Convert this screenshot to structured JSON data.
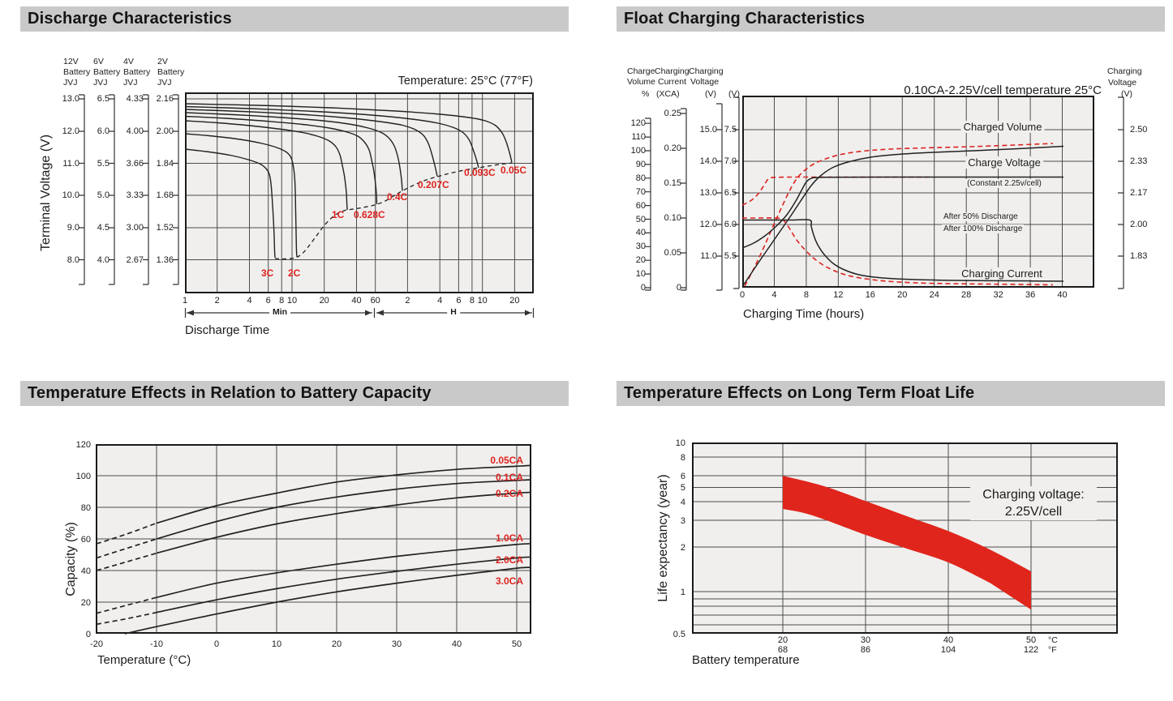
{
  "discharge": {
    "header": "Discharge Characteristics",
    "temp_note": "Temperature: 25°C (77°F)",
    "y_label": "Terminal Voltage (V)",
    "x_label": "Discharge Time",
    "range_min_label": "Min",
    "range_h_label": "H",
    "scales": [
      {
        "title": [
          "12V",
          "Battery",
          "JVJ"
        ],
        "ticks": [
          "13.0",
          "12.0",
          "11.0",
          "10.0",
          "9.0",
          "8.0"
        ]
      },
      {
        "title": [
          "6V",
          "Battery",
          "JVJ"
        ],
        "ticks": [
          "6.5",
          "6.0",
          "5.5",
          "5.0",
          "4.5",
          "4.0"
        ]
      },
      {
        "title": [
          "4V",
          "Battery",
          "JVJ"
        ],
        "ticks": [
          "4.33",
          "4.00",
          "3.66",
          "3.33",
          "3.00",
          "2.67"
        ]
      },
      {
        "title": [
          "2V",
          "Battery",
          "JVJ"
        ],
        "ticks": [
          "2.16",
          "2.00",
          "1.84",
          "1.68",
          "1.52",
          "1.36"
        ]
      }
    ],
    "x_ticks": [
      "1",
      "2",
      "4",
      "6",
      "8",
      "10",
      "20",
      "40",
      "60",
      "2",
      "4",
      "6",
      "8",
      "10",
      "20"
    ],
    "curve_labels": [
      "3C",
      "2C",
      "1C",
      "0.628C",
      "0.4C",
      "0.207C",
      "0.093C",
      "0.05C"
    ]
  },
  "float_charge": {
    "header": "Float Charging Characteristics",
    "condition": "0.10CA-2.25V/cell  temperature 25°C",
    "x_label": "Charging Time (hours)",
    "x_ticks": [
      "0",
      "4",
      "8",
      "12",
      "16",
      "20",
      "24",
      "28",
      "32",
      "36",
      "40"
    ],
    "scales": {
      "volume": {
        "title": [
          "Charge",
          "Volume",
          "%"
        ],
        "ticks": [
          "120",
          "110",
          "100",
          "90",
          "80",
          "70",
          "60",
          "50",
          "40",
          "30",
          "20",
          "10",
          "0"
        ]
      },
      "current": {
        "title": [
          "Charging",
          "Current",
          "(XCA)"
        ],
        "ticks": [
          "0.25",
          "0.20",
          "0.15",
          "0.10",
          "0.05",
          "0"
        ]
      },
      "voltage12": {
        "title": [
          "Charging",
          "Voltage",
          "(V)"
        ],
        "ticks": [
          "15.0",
          "14.0",
          "13.0",
          "12.0",
          "11.0"
        ]
      },
      "voltage6": {
        "title": [
          "(V)"
        ],
        "ticks": [
          "7.5",
          "7.0",
          "6.5",
          "6.0",
          "5.5"
        ]
      },
      "voltage_cell": {
        "title": [
          "Charging",
          "Voltage",
          "(V)"
        ],
        "ticks": [
          "2.50",
          "2.33",
          "2.17",
          "2.00",
          "1.83"
        ]
      }
    },
    "plot_labels": {
      "charged_volume": "Charged Volume",
      "charge_voltage": "Charge Voltage",
      "constant": "(Constant 2.25v/cell)",
      "charging_current": "Charging Current"
    },
    "legend": [
      {
        "label": "After  50% Discharge",
        "style": "red-dashed"
      },
      {
        "label": "After 100% Discharge",
        "style": "black-solid"
      }
    ]
  },
  "temp_capacity": {
    "header": "Temperature Effects in Relation to Battery Capacity",
    "y_label": "Capacity (%)",
    "x_label": "Temperature (°C)",
    "y_ticks": [
      "120",
      "100",
      "80",
      "60",
      "40",
      "20",
      "0"
    ],
    "x_ticks": [
      "-20",
      "-10",
      "0",
      "10",
      "20",
      "30",
      "40",
      "50"
    ],
    "curve_labels": [
      "0.05CA",
      "0.1CA",
      "0.2CA",
      "1.0CA",
      "2.0CA",
      "3.0CA"
    ]
  },
  "float_life": {
    "header": "Temperature Effects on Long Term Float Life",
    "y_label": "Life expectancy (year)",
    "x_label": "Battery temperature",
    "y_ticks": [
      "10",
      "8",
      "6",
      "5",
      "4",
      "3",
      "2",
      "1",
      "0.5"
    ],
    "x_ticks_c": [
      "20",
      "30",
      "40",
      "50"
    ],
    "x_ticks_f": [
      "68",
      "86",
      "104",
      "122"
    ],
    "unit_c": "°C",
    "unit_f": "°F",
    "annotation": [
      "Charging voltage:",
      "2.25V/cell"
    ]
  },
  "chart_data": [
    {
      "type": "line",
      "title": "Discharge Characteristics",
      "temperature": "25°C (77°F)",
      "xlabel": "Discharge Time",
      "x_scale": "log",
      "x_unit": "minutes (1–60 Min, then 2–20 H)",
      "ylabel": "Terminal Voltage (V)",
      "y_scales": {
        "12V Battery JVJ": [
          13.0,
          12.0,
          11.0,
          10.0,
          9.0,
          8.0
        ],
        "6V Battery JVJ": [
          6.5,
          6.0,
          5.5,
          5.0,
          4.5,
          4.0
        ],
        "4V Battery JVJ": [
          4.33,
          4.0,
          3.66,
          3.33,
          3.0,
          2.67
        ],
        "2V Battery JVJ": [
          2.16,
          2.0,
          1.84,
          1.68,
          1.52,
          1.36
        ]
      },
      "series": [
        {
          "name": "3C",
          "points_min_v2": [
            [
              1,
              1.88
            ],
            [
              2,
              1.86
            ],
            [
              4,
              1.81
            ],
            [
              5.5,
              1.76
            ],
            [
              6.3,
              1.68
            ],
            [
              6.8,
              1.5
            ],
            [
              7,
              1.37
            ]
          ]
        },
        {
          "name": "2C",
          "points_min_v2": [
            [
              1,
              1.96
            ],
            [
              2,
              1.94
            ],
            [
              5,
              1.9
            ],
            [
              8,
              1.85
            ],
            [
              9.5,
              1.79
            ],
            [
              10.5,
              1.6
            ],
            [
              11,
              1.37
            ]
          ]
        },
        {
          "name": "1C",
          "points_min_v2": [
            [
              1,
              2.02
            ],
            [
              5,
              2.0
            ],
            [
              15,
              1.95
            ],
            [
              25,
              1.88
            ],
            [
              30,
              1.78
            ],
            [
              33,
              1.58
            ]
          ]
        },
        {
          "name": "0.628C",
          "points_min_v2": [
            [
              1,
              2.04
            ],
            [
              10,
              2.02
            ],
            [
              30,
              1.96
            ],
            [
              48,
              1.88
            ],
            [
              55,
              1.74
            ],
            [
              58,
              1.61
            ]
          ]
        },
        {
          "name": "0.4C",
          "points_min_v2": [
            [
              1,
              2.06
            ],
            [
              20,
              2.03
            ],
            [
              60,
              1.97
            ],
            [
              88,
              1.88
            ],
            [
              100,
              1.75
            ],
            [
              104,
              1.67
            ]
          ]
        },
        {
          "name": "0.207C",
          "points_min_v2": [
            [
              1,
              2.08
            ],
            [
              60,
              2.05
            ],
            [
              150,
              1.98
            ],
            [
              210,
              1.87
            ],
            [
              230,
              1.74
            ]
          ]
        },
        {
          "name": "0.093C",
          "points_min_v2": [
            [
              1,
              2.09
            ],
            [
              120,
              2.07
            ],
            [
              350,
              2.0
            ],
            [
              520,
              1.89
            ],
            [
              560,
              1.79
            ]
          ]
        },
        {
          "name": "0.05C",
          "points_min_v2": [
            [
              1,
              2.1
            ],
            [
              240,
              2.08
            ],
            [
              800,
              2.01
            ],
            [
              1080,
              1.91
            ],
            [
              1150,
              1.81
            ]
          ]
        }
      ],
      "cutoff_envelope_min_v2": [
        [
          7,
          1.37
        ],
        [
          11,
          1.37
        ],
        [
          33,
          1.58
        ],
        [
          58,
          1.61
        ],
        [
          104,
          1.67
        ],
        [
          230,
          1.74
        ],
        [
          560,
          1.79
        ],
        [
          1150,
          1.81
        ]
      ]
    },
    {
      "type": "line",
      "title": "Float Charging Characteristics",
      "condition": "0.10CA-2.25V/cell temperature 25°C",
      "xlabel": "Charging Time (hours)",
      "x_range": [
        0,
        44
      ],
      "right_axis": "Charging Voltage (V/cell) 1.83–2.50",
      "series": [
        {
          "name": "Charge Voltage – After 50% Discharge",
          "unit": "V (6V battery)",
          "style": "red-dashed",
          "points": [
            [
              0,
              6.2
            ],
            [
              1,
              6.3
            ],
            [
              2,
              6.45
            ],
            [
              3,
              6.62
            ],
            [
              4,
              6.75
            ],
            [
              22,
              6.75
            ]
          ]
        },
        {
          "name": "Charge Voltage – After 100% Discharge",
          "unit": "V (6V battery)",
          "style": "black-solid",
          "points": [
            [
              0,
              5.6
            ],
            [
              2,
              5.78
            ],
            [
              4,
              5.98
            ],
            [
              6,
              6.3
            ],
            [
              7.5,
              6.62
            ],
            [
              8.5,
              6.75
            ],
            [
              37,
              6.75
            ]
          ]
        },
        {
          "name": "Charged Volume – After 50% Discharge",
          "unit": "%",
          "style": "red-dashed",
          "points": [
            [
              0,
              0
            ],
            [
              2,
              32
            ],
            [
              4,
              65
            ],
            [
              6,
              82
            ],
            [
              8,
              91
            ],
            [
              12,
              97
            ],
            [
              16,
              100
            ],
            [
              24,
              103
            ],
            [
              36,
              106
            ]
          ]
        },
        {
          "name": "Charged Volume – After 100% Discharge",
          "unit": "%",
          "style": "black-solid",
          "points": [
            [
              0,
              0
            ],
            [
              2,
              22
            ],
            [
              4,
              45
            ],
            [
              6,
              64
            ],
            [
              8,
              79
            ],
            [
              12,
              91
            ],
            [
              16,
              96
            ],
            [
              24,
              101
            ],
            [
              36,
              104
            ]
          ]
        },
        {
          "name": "Charging Current – After 50% Discharge",
          "unit": "XCA",
          "style": "red-dashed",
          "points": [
            [
              0,
              0.1
            ],
            [
              4.5,
              0.1
            ],
            [
              6,
              0.075
            ],
            [
              8,
              0.05
            ],
            [
              12,
              0.025
            ],
            [
              16,
              0.015
            ],
            [
              24,
              0.01
            ],
            [
              36,
              0.008
            ]
          ]
        },
        {
          "name": "Charging Current – After 100% Discharge",
          "unit": "XCA",
          "style": "black-solid",
          "points": [
            [
              0,
              0.1
            ],
            [
              8,
              0.1
            ],
            [
              10,
              0.065
            ],
            [
              13,
              0.04
            ],
            [
              18,
              0.02
            ],
            [
              24,
              0.013
            ],
            [
              37,
              0.01
            ]
          ]
        }
      ]
    },
    {
      "type": "line",
      "title": "Temperature Effects in Relation to Battery Capacity",
      "xlabel": "Temperature (°C)",
      "ylabel": "Capacity (%)",
      "ylim": [
        0,
        120
      ],
      "categories_c": [
        -20,
        -10,
        0,
        10,
        20,
        30,
        40,
        50
      ],
      "series": [
        {
          "name": "0.05CA",
          "values": [
            57,
            70,
            81,
            89,
            96,
            100.5,
            104,
            106
          ]
        },
        {
          "name": "0.1CA",
          "values": [
            48,
            60,
            71,
            80,
            86.5,
            91.5,
            95,
            97
          ]
        },
        {
          "name": "0.2CA",
          "values": [
            40,
            51,
            61,
            69.5,
            76,
            81.5,
            86,
            89
          ]
        },
        {
          "name": "1.0CA",
          "values": [
            13,
            23,
            32,
            38.5,
            44,
            49,
            53,
            56.5
          ]
        },
        {
          "name": "2.0CA",
          "values": [
            6,
            13.5,
            21.5,
            28.5,
            34.5,
            39.5,
            44,
            48
          ]
        },
        {
          "name": "3.0CA",
          "values": [
            null,
            4.5,
            12.5,
            20,
            26.5,
            32,
            37,
            41.5
          ]
        }
      ],
      "note": "curves are dashed below approx. -15°C"
    },
    {
      "type": "area",
      "title": "Temperature Effects on Long Term Float Life",
      "xlabel": "Battery temperature",
      "ylabel": "Life expectancy (year)",
      "y_scale": "log",
      "ylim": [
        0.5,
        10
      ],
      "x_ticks_c": [
        20,
        30,
        40,
        50
      ],
      "x_ticks_f": [
        68,
        86,
        104,
        122
      ],
      "annotation": "Charging voltage: 2.25V/cell",
      "band": {
        "temperature_c": [
          20,
          25,
          30,
          35,
          40,
          45,
          50
        ],
        "upper_years": [
          6.0,
          5.1,
          4.05,
          3.2,
          2.55,
          1.92,
          1.37
        ],
        "lower_years": [
          3.6,
          3.05,
          2.42,
          1.95,
          1.58,
          1.15,
          0.76
        ]
      }
    }
  ]
}
